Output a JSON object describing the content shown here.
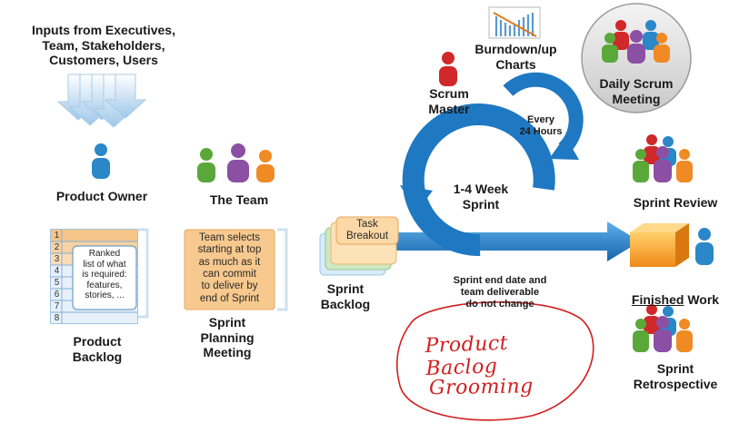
{
  "labels": {
    "inputs": "Inputs from Executives,\nTeam, Stakeholders,\nCustomers, Users",
    "product_owner": "Product Owner",
    "the_team": "The Team",
    "product_backlog": "Product\nBacklog",
    "sprint_planning": "Sprint\nPlanning\nMeeting",
    "sprint_backlog": "Sprint\nBacklog",
    "scrum_master": "Scrum\nMaster",
    "burndown": "Burndown/up\nCharts",
    "daily_scrum": "Daily Scrum\nMeeting",
    "every_24": "Every\n24 Hours",
    "sprint_length": "1-4 Week\nSprint",
    "task_breakout": "Task\nBreakout",
    "sprint_end_note": "Sprint end date and\nteam deliverable\ndo not change",
    "sprint_review": "Sprint Review",
    "finished_emph": "Finished",
    "finished_rest": " Work",
    "sprint_retro": "Sprint\nRetrospective"
  },
  "backlog": {
    "rows": [
      "1",
      "2",
      "3",
      "4",
      "5",
      "6",
      "7",
      "8"
    ],
    "card_text": "Ranked\nlist of what\nis required:\nfeatures,\nstories, ..."
  },
  "planning_card_text": "Team selects\nstarting at top\nas much as it\ncan commit\nto deliver by\nend of Sprint",
  "handwriting": {
    "line1": "Product Baclog",
    "line2": "Grooming",
    "ink_color": "#d21f1f"
  },
  "colors": {
    "arrow_blue": "#1f78c2",
    "person_blue": "#2a87c8",
    "person_green": "#5aa83a",
    "person_purple": "#8b4fa4",
    "person_orange": "#f08a24",
    "person_red": "#d0282b",
    "backlog_orange": "#f6c58a",
    "box_orange": "#f49b22"
  }
}
